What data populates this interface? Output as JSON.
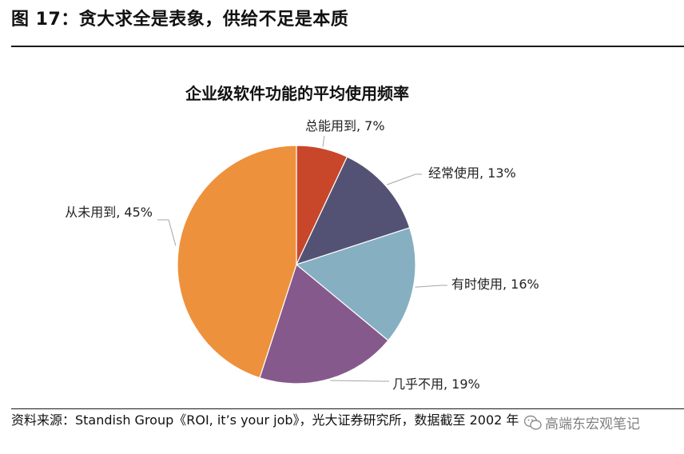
{
  "figure": {
    "title": "图 17：贪大求全是表象，供给不足是本质"
  },
  "chart_data": {
    "type": "pie",
    "title": "企业级软件功能的平均使用频率",
    "start_angle_deg": 0,
    "direction": "clockwise",
    "slices": [
      {
        "label": "总能用到",
        "value": 7,
        "display": "总能用到, 7%",
        "color": "#c8472a"
      },
      {
        "label": "经常使用",
        "value": 13,
        "display": "经常使用, 13%",
        "color": "#545274"
      },
      {
        "label": "有时使用",
        "value": 16,
        "display": "有时使用, 16%",
        "color": "#86afc2"
      },
      {
        "label": "几乎不用",
        "value": 19,
        "display": "几乎不用, 19%",
        "color": "#86598c"
      },
      {
        "label": "从未用到",
        "value": 45,
        "display": "从未用到, 45%",
        "color": "#ee913c"
      }
    ]
  },
  "source": {
    "text": "资料来源：Standish Group《ROI, it’s your job》，光大证券研究所，数据截至 2002 年"
  },
  "watermark": {
    "text": "高端东宏观笔记"
  }
}
